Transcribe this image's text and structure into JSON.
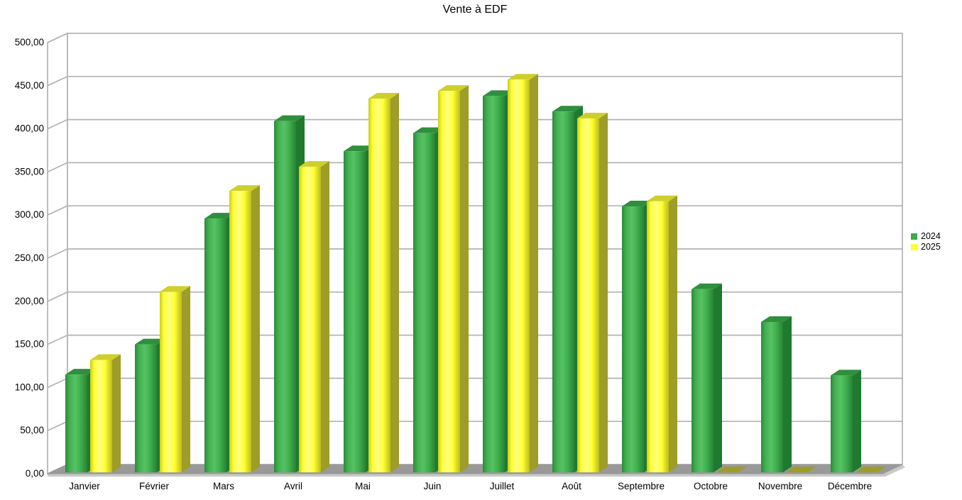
{
  "title": "Vente à EDF",
  "chart_data": {
    "type": "bar",
    "style": "3d",
    "title": "Vente à EDF",
    "categories": [
      "Janvier",
      "Février",
      "Mars",
      "Avril",
      "Mai",
      "Juin",
      "Juillet",
      "Août",
      "Septembre",
      "Octobre",
      "Novembre",
      "Décembre"
    ],
    "series": [
      {
        "name": "2024",
        "color": "#3aab47",
        "values": [
          115,
          150,
          296,
          409,
          374,
          395,
          438,
          420,
          310,
          214,
          176,
          114
        ]
      },
      {
        "name": "2025",
        "color": "#ffff2e",
        "values": [
          132,
          211,
          328,
          356,
          435,
          444,
          457,
          412,
          316,
          0,
          0,
          0
        ]
      }
    ],
    "ylim": [
      0,
      500
    ],
    "ytick_step": 50,
    "ytick_labels": [
      "0,00",
      "50,00",
      "100,00",
      "150,00",
      "200,00",
      "250,00",
      "300,00",
      "350,00",
      "400,00",
      "450,00",
      "500,00"
    ],
    "grid": true,
    "legend_position": "right"
  },
  "colors": {
    "green_front_edge": "#2c8a3a",
    "green_front_mid": "#57c264",
    "green_side": "#1f7a2f",
    "green_top": "#2f8f3d",
    "yellow_front_edge": "#c9c920",
    "yellow_front_mid": "#ffff85",
    "yellow_front": "#ffff2e",
    "yellow_side": "#9d9d27",
    "yellow_top": "#cfcf2c",
    "grid": "#b3b3b3",
    "floor": "#999999",
    "floor_edge": "#c9c9c9",
    "background": "#ffffff",
    "text": "#000000"
  }
}
